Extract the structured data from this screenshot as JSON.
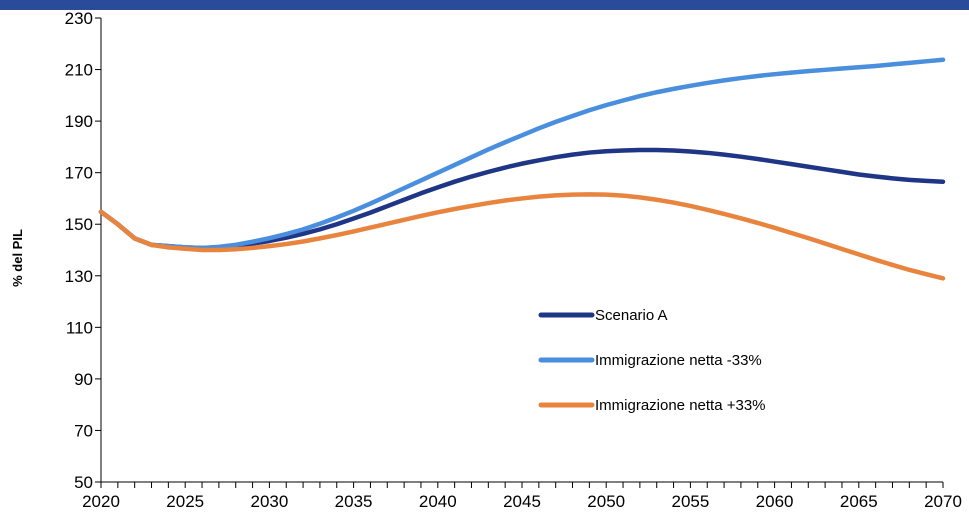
{
  "chart_data": {
    "type": "line",
    "title": "",
    "xlabel": "",
    "ylabel": "% del PIL",
    "xlim": [
      2020,
      2070
    ],
    "ylim": [
      50,
      230
    ],
    "xticks": [
      2020,
      2025,
      2030,
      2035,
      2040,
      2045,
      2050,
      2055,
      2060,
      2065,
      2070
    ],
    "yticks": [
      50,
      70,
      90,
      110,
      130,
      150,
      170,
      190,
      210,
      230
    ],
    "grid": false,
    "legend_position": "bottom-center-right",
    "x": [
      2020,
      2021,
      2022,
      2023,
      2024,
      2025,
      2026,
      2027,
      2028,
      2029,
      2030,
      2031,
      2032,
      2033,
      2034,
      2035,
      2036,
      2037,
      2038,
      2039,
      2040,
      2041,
      2042,
      2043,
      2044,
      2045,
      2046,
      2047,
      2048,
      2049,
      2050,
      2051,
      2052,
      2053,
      2054,
      2055,
      2056,
      2057,
      2058,
      2059,
      2060,
      2061,
      2062,
      2063,
      2064,
      2065,
      2066,
      2067,
      2068,
      2069,
      2070
    ],
    "series": [
      {
        "name": "Scenario A",
        "color": "#1f3585",
        "values": [
          154.8,
          150.0,
          144.5,
          142.0,
          141.5,
          141.0,
          140.8,
          141.0,
          141.5,
          142.5,
          143.5,
          144.8,
          146.3,
          148.0,
          150.0,
          152.2,
          154.5,
          157.0,
          159.5,
          162.0,
          164.3,
          166.5,
          168.5,
          170.3,
          172.0,
          173.5,
          174.8,
          176.0,
          177.0,
          177.8,
          178.3,
          178.6,
          178.8,
          178.8,
          178.6,
          178.2,
          177.7,
          177.0,
          176.2,
          175.3,
          174.3,
          173.3,
          172.3,
          171.3,
          170.3,
          169.3,
          168.5,
          167.8,
          167.2,
          166.8,
          166.5
        ]
      },
      {
        "name": "Immigrazione netta -33%",
        "color": "#4a8ede",
        "values": [
          154.8,
          150.0,
          144.5,
          142.0,
          141.5,
          141.0,
          140.8,
          141.2,
          142.0,
          143.2,
          144.6,
          146.2,
          148.0,
          150.2,
          152.6,
          155.2,
          158.0,
          161.0,
          164.0,
          167.0,
          170.0,
          173.0,
          176.0,
          179.0,
          181.8,
          184.5,
          187.2,
          189.7,
          192.0,
          194.2,
          196.2,
          198.0,
          199.7,
          201.2,
          202.5,
          203.7,
          204.8,
          205.8,
          206.7,
          207.5,
          208.2,
          208.8,
          209.4,
          209.9,
          210.4,
          210.9,
          211.4,
          212.0,
          212.6,
          213.2,
          213.8
        ]
      },
      {
        "name": "Immigrazione netta +33%",
        "color": "#e8843e",
        "values": [
          154.8,
          150.0,
          144.5,
          142.0,
          141.0,
          140.5,
          140.0,
          140.0,
          140.3,
          140.8,
          141.5,
          142.3,
          143.3,
          144.5,
          145.8,
          147.2,
          148.7,
          150.2,
          151.7,
          153.2,
          154.6,
          155.9,
          157.1,
          158.2,
          159.2,
          160.0,
          160.7,
          161.2,
          161.5,
          161.6,
          161.5,
          161.1,
          160.4,
          159.5,
          158.4,
          157.1,
          155.6,
          154.0,
          152.3,
          150.5,
          148.6,
          146.6,
          144.6,
          142.5,
          140.4,
          138.3,
          136.2,
          134.2,
          132.3,
          130.6,
          129.0
        ]
      }
    ]
  }
}
